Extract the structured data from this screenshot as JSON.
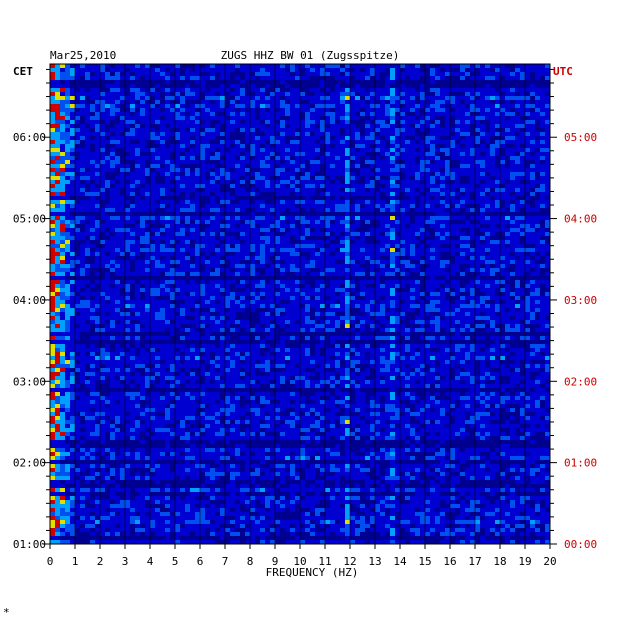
{
  "chart_data": {
    "type": "heatmap",
    "date": "Mar25,2010",
    "title": "ZUGS HHZ BW 01 (Zugsspitze)",
    "xlabel": "FREQUENCY (HZ)",
    "left_axis_label": "CET",
    "right_axis_label": "UTC",
    "xlim": [
      0,
      20
    ],
    "x_ticks": [
      "0",
      "1",
      "2",
      "3",
      "4",
      "5",
      "6",
      "7",
      "8",
      "9",
      "10",
      "11",
      "12",
      "13",
      "14",
      "15",
      "16",
      "17",
      "18",
      "19",
      "20"
    ],
    "left_time_ticks": [
      "06:00",
      "05:00",
      "04:00",
      "03:00",
      "02:00",
      "01:00"
    ],
    "right_time_ticks": [
      "05:00",
      "04:00",
      "03:00",
      "02:00",
      "01:00",
      "00:00"
    ],
    "time_range_cet_hours": [
      1.0,
      6.9
    ],
    "colors": {
      "background": "#000090",
      "low": "#0000d0",
      "mid": "#00a0ff",
      "high": "#e0e000",
      "peak": "#d00000",
      "utc_label": "#cc0000",
      "text": "#000000"
    },
    "features": {
      "strong_low_frequency_band_hz": [
        0,
        1
      ],
      "narrow_lines_hz": [
        11.9,
        13.7
      ]
    },
    "footer_mark": "*"
  }
}
